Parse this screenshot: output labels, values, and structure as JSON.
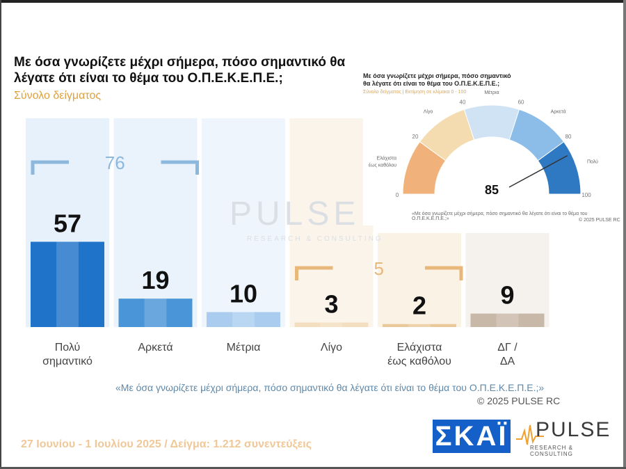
{
  "title": "Με όσα γνωρίζετε μέχρι σήμερα, πόσο σημαντικό θα λέγατε ότι είναι το θέμα του  Ο.Π.Ε.Κ.Ε.Π.Ε.;",
  "subtitle": "Σύνολο δείγματος",
  "watermark": {
    "main": "PULSE",
    "sub": "RESEARCH & CONSULTING"
  },
  "chart_data": {
    "type": "bar",
    "title": "Με όσα γνωρίζετε μέχρι σήμερα, πόσο σημαντικό θα λέγατε ότι είναι το θέμα του  Ο.Π.Ε.Κ.Ε.Π.Ε.;",
    "subtitle": "Σύνολο δείγματος",
    "categories": [
      "Πολύ σημαντικό",
      "Αρκετά",
      "Μέτρια",
      "Λίγο",
      "Ελάχιστα έως καθόλου",
      "ΔΓ / ΔΑ"
    ],
    "category_lines": [
      [
        "Πολύ",
        "σημαντικό"
      ],
      [
        "Αρκετά"
      ],
      [
        "Μέτρια"
      ],
      [
        "Λίγο"
      ],
      [
        "Ελάχιστα",
        "έως καθόλου"
      ],
      [
        "ΔΓ /",
        "ΔΑ"
      ]
    ],
    "values": [
      57,
      19,
      10,
      3,
      2,
      9
    ],
    "colors": [
      "#1f73c8",
      "#4a94d8",
      "#aacdef",
      "#f3dfbf",
      "#e9c89a",
      "#c8b8a8"
    ],
    "groups": [
      {
        "label": "76",
        "from": 0,
        "to": 1,
        "color": "#8db8de"
      },
      {
        "label": "5",
        "from": 3,
        "to": 4,
        "color": "#e8b87a"
      }
    ]
  },
  "footnote": "«Με όσα γνωρίζετε μέχρι σήμερα, πόσο σημαντικό θα λέγατε ότι είναι το θέμα του Ο.Π.Ε.Κ.Ε.Π.Ε.;»",
  "copyright": "©  2025  PULSE RC",
  "fieldwork": "27 Ιουνίου  -  1 Ιουλίου 2025   /   Δείγμα:  1.212 συνεντεύξεις",
  "logos": {
    "skai": "ΣΚΑΪ",
    "pulse": "PULSE",
    "pulse_sub": "RESEARCH & CONSULTING"
  },
  "inset": {
    "title_line1": "Με όσα γνωρίζετε μέχρι σήμερα, πόσο σημαντικό",
    "title_line2": "θα λέγατε ότι είναι το θέμα του  Ο.Π.Ε.Κ.Ε.Π.Ε.;",
    "subtitle": "Σύνολο δείγματος  |  Εκτίμηση σε κλίμακα  0 - 100",
    "note": "«Με όσα γνωρίζετε μέχρι σήμερα, πόσο σημαντικό θα λέγατε ότι είναι το θέμα του Ο.Π.Ε.Κ.Ε.Π.Ε.;»",
    "copyright": "©  2025  PULSE RC",
    "gauge": {
      "value": 85,
      "value_label": "85",
      "min": 0,
      "max": 100,
      "ticks": [
        "0",
        "20",
        "40",
        "60",
        "80",
        "100"
      ],
      "zones": [
        {
          "label": "Ελάχιστα έως καθόλου",
          "color": "#f0b27a"
        },
        {
          "label": "Λίγο",
          "color": "#f5dcb0"
        },
        {
          "label": "Μέτρια",
          "color": "#cfe3f5"
        },
        {
          "label": "Αρκετά",
          "color": "#8cbde8"
        },
        {
          "label": "Πολύ",
          "color": "#2f78c2"
        }
      ],
      "zone_label_lines": [
        [
          "Ελάχιστα",
          "έως καθόλου"
        ],
        [
          "Λίγο"
        ],
        [
          "Μέτρια"
        ],
        [
          "Αρκετά"
        ],
        [
          "Πολύ"
        ]
      ]
    }
  }
}
